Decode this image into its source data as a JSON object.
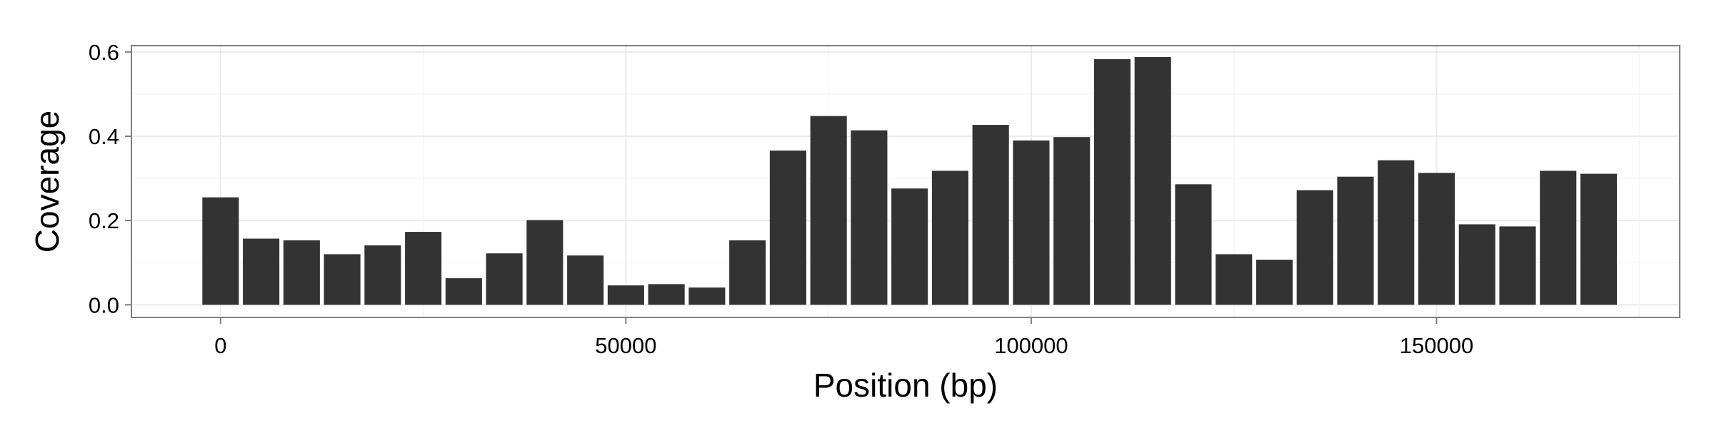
{
  "chart_data": {
    "type": "bar",
    "title": "",
    "xlabel": "Position (bp)",
    "ylabel": "Coverage",
    "xlim": [
      -11000,
      180000
    ],
    "ylim": [
      -0.03,
      0.615
    ],
    "x_ticks": [
      0,
      50000,
      100000,
      150000
    ],
    "x_tick_labels": [
      "0",
      "50000",
      "100000",
      "150000"
    ],
    "y_ticks": [
      0.0,
      0.2,
      0.4,
      0.6
    ],
    "y_tick_labels": [
      "0.0",
      "0.2",
      "0.4",
      "0.6"
    ],
    "grid": true,
    "legend": "none",
    "bar_width": 4500,
    "x": [
      0,
      5000,
      10000,
      15000,
      20000,
      25000,
      30000,
      35000,
      40000,
      45000,
      50000,
      55000,
      60000,
      65000,
      70000,
      75000,
      80000,
      85000,
      90000,
      95000,
      100000,
      105000,
      110000,
      115000,
      120000,
      125000,
      130000,
      135000,
      140000,
      145000,
      150000,
      155000,
      160000,
      165000,
      170000
    ],
    "values": [
      0.255,
      0.157,
      0.153,
      0.12,
      0.141,
      0.173,
      0.063,
      0.122,
      0.201,
      0.117,
      0.046,
      0.049,
      0.041,
      0.153,
      0.366,
      0.448,
      0.414,
      0.276,
      0.318,
      0.427,
      0.39,
      0.398,
      0.583,
      0.588,
      0.286,
      0.12,
      0.107,
      0.272,
      0.304,
      0.343,
      0.313,
      0.191,
      0.186,
      0.318,
      0.311
    ]
  },
  "colors": {
    "bar": "#333333",
    "panel_border": "#7f7f7f",
    "grid_major": "#ebebeb",
    "grid_minor": "#f5f5f5",
    "tick": "#7f7f7f"
  }
}
